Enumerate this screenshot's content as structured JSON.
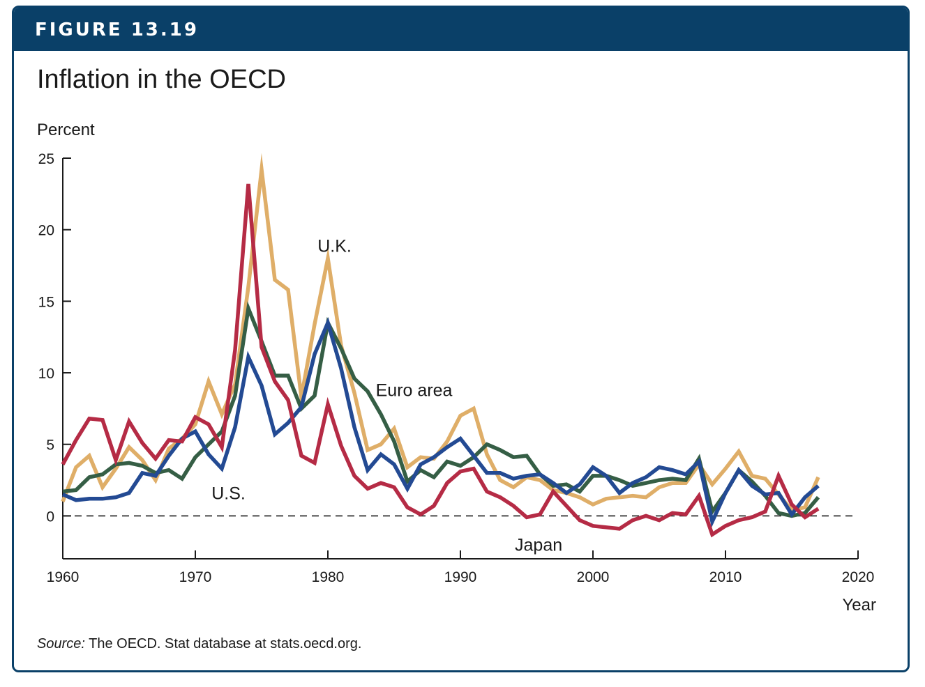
{
  "figure": {
    "label": "FIGURE 13.19",
    "title": "Inflation in the OECD",
    "source_prefix": "Source:",
    "source_text": " The OECD. Stat database at stats.oecd.org."
  },
  "colors": {
    "header": "#0a4068",
    "us": "#234a93",
    "uk": "#dfae68",
    "euro": "#355e45",
    "japan": "#b52b45"
  },
  "chart_data": {
    "type": "line",
    "ylabel": "Percent",
    "xlabel": "Year",
    "xlim": [
      1960,
      2020
    ],
    "ylim": [
      -3,
      25
    ],
    "xticks": [
      1960,
      1970,
      1980,
      1990,
      2000,
      2010,
      2020
    ],
    "yticks": [
      0,
      5,
      10,
      15,
      20,
      25
    ],
    "zero_line": "dashed",
    "grid": false,
    "series": [
      {
        "name": "U.K.",
        "color": "#dfae68",
        "label_pos": [
          1980.5,
          18.9
        ],
        "points": [
          [
            1960,
            1.0
          ],
          [
            1961,
            3.4
          ],
          [
            1962,
            4.2
          ],
          [
            1963,
            2.0
          ],
          [
            1964,
            3.3
          ],
          [
            1965,
            4.8
          ],
          [
            1966,
            3.9
          ],
          [
            1967,
            2.5
          ],
          [
            1968,
            4.7
          ],
          [
            1969,
            5.4
          ],
          [
            1970,
            6.4
          ],
          [
            1971,
            9.4
          ],
          [
            1972,
            7.1
          ],
          [
            1973,
            9.2
          ],
          [
            1974,
            16.0
          ],
          [
            1975,
            24.2
          ],
          [
            1976,
            16.5
          ],
          [
            1977,
            15.8
          ],
          [
            1978,
            8.3
          ],
          [
            1979,
            13.4
          ],
          [
            1980,
            18.0
          ],
          [
            1981,
            11.9
          ],
          [
            1982,
            8.6
          ],
          [
            1983,
            4.6
          ],
          [
            1984,
            5.0
          ],
          [
            1985,
            6.1
          ],
          [
            1986,
            3.4
          ],
          [
            1987,
            4.1
          ],
          [
            1988,
            4.0
          ],
          [
            1989,
            5.2
          ],
          [
            1990,
            7.0
          ],
          [
            1991,
            7.5
          ],
          [
            1992,
            4.3
          ],
          [
            1993,
            2.5
          ],
          [
            1994,
            2.0
          ],
          [
            1995,
            2.7
          ],
          [
            1996,
            2.5
          ],
          [
            1997,
            1.8
          ],
          [
            1998,
            1.6
          ],
          [
            1999,
            1.3
          ],
          [
            2000,
            0.8
          ],
          [
            2001,
            1.2
          ],
          [
            2002,
            1.3
          ],
          [
            2003,
            1.4
          ],
          [
            2004,
            1.3
          ],
          [
            2005,
            2.0
          ],
          [
            2006,
            2.3
          ],
          [
            2007,
            2.3
          ],
          [
            2008,
            3.6
          ],
          [
            2009,
            2.2
          ],
          [
            2010,
            3.3
          ],
          [
            2011,
            4.5
          ],
          [
            2012,
            2.8
          ],
          [
            2013,
            2.6
          ],
          [
            2014,
            1.5
          ],
          [
            2015,
            0.4
          ],
          [
            2016,
            0.6
          ],
          [
            2017,
            2.7
          ]
        ]
      },
      {
        "name": "Euro area",
        "color": "#355e45",
        "label_pos": [
          1986.5,
          8.8
        ],
        "points": [
          [
            1960,
            1.7
          ],
          [
            1961,
            1.8
          ],
          [
            1962,
            2.7
          ],
          [
            1963,
            2.9
          ],
          [
            1964,
            3.6
          ],
          [
            1965,
            3.7
          ],
          [
            1966,
            3.5
          ],
          [
            1967,
            3.0
          ],
          [
            1968,
            3.2
          ],
          [
            1969,
            2.6
          ],
          [
            1970,
            4.1
          ],
          [
            1971,
            5.0
          ],
          [
            1972,
            5.9
          ],
          [
            1973,
            8.4
          ],
          [
            1974,
            14.5
          ],
          [
            1975,
            12.2
          ],
          [
            1976,
            9.8
          ],
          [
            1977,
            9.8
          ],
          [
            1978,
            7.5
          ],
          [
            1979,
            8.4
          ],
          [
            1980,
            13.5
          ],
          [
            1981,
            11.7
          ],
          [
            1982,
            9.6
          ],
          [
            1983,
            8.7
          ],
          [
            1984,
            7.1
          ],
          [
            1985,
            5.2
          ],
          [
            1986,
            2.4
          ],
          [
            1987,
            3.2
          ],
          [
            1988,
            2.7
          ],
          [
            1989,
            3.8
          ],
          [
            1990,
            3.5
          ],
          [
            1991,
            4.1
          ],
          [
            1992,
            5.0
          ],
          [
            1993,
            4.6
          ],
          [
            1994,
            4.1
          ],
          [
            1995,
            4.2
          ],
          [
            1996,
            2.9
          ],
          [
            1997,
            2.1
          ],
          [
            1998,
            2.2
          ],
          [
            1999,
            1.7
          ],
          [
            2000,
            2.8
          ],
          [
            2001,
            2.8
          ],
          [
            2002,
            2.5
          ],
          [
            2003,
            2.1
          ],
          [
            2004,
            2.3
          ],
          [
            2005,
            2.5
          ],
          [
            2006,
            2.6
          ],
          [
            2007,
            2.5
          ],
          [
            2008,
            4.0
          ],
          [
            2009,
            0.3
          ],
          [
            2010,
            1.6
          ],
          [
            2011,
            3.2
          ],
          [
            2012,
            2.4
          ],
          [
            2013,
            1.4
          ],
          [
            2014,
            0.2
          ],
          [
            2015,
            0.0
          ],
          [
            2016,
            0.2
          ],
          [
            2017,
            1.3
          ]
        ]
      },
      {
        "name": "U.S.",
        "color": "#234a93",
        "label_pos": [
          1972.5,
          1.6
        ],
        "points": [
          [
            1960,
            1.5
          ],
          [
            1961,
            1.1
          ],
          [
            1962,
            1.2
          ],
          [
            1963,
            1.2
          ],
          [
            1964,
            1.3
          ],
          [
            1965,
            1.6
          ],
          [
            1966,
            3.0
          ],
          [
            1967,
            2.8
          ],
          [
            1968,
            4.2
          ],
          [
            1969,
            5.4
          ],
          [
            1970,
            5.9
          ],
          [
            1971,
            4.3
          ],
          [
            1972,
            3.3
          ],
          [
            1973,
            6.2
          ],
          [
            1974,
            11.1
          ],
          [
            1975,
            9.1
          ],
          [
            1976,
            5.7
          ],
          [
            1977,
            6.5
          ],
          [
            1978,
            7.6
          ],
          [
            1979,
            11.3
          ],
          [
            1980,
            13.5
          ],
          [
            1981,
            10.3
          ],
          [
            1982,
            6.2
          ],
          [
            1983,
            3.2
          ],
          [
            1984,
            4.3
          ],
          [
            1985,
            3.6
          ],
          [
            1986,
            1.9
          ],
          [
            1987,
            3.6
          ],
          [
            1988,
            4.1
          ],
          [
            1989,
            4.8
          ],
          [
            1990,
            5.4
          ],
          [
            1991,
            4.2
          ],
          [
            1992,
            3.0
          ],
          [
            1993,
            3.0
          ],
          [
            1994,
            2.6
          ],
          [
            1995,
            2.8
          ],
          [
            1996,
            2.9
          ],
          [
            1997,
            2.3
          ],
          [
            1998,
            1.6
          ],
          [
            1999,
            2.2
          ],
          [
            2000,
            3.4
          ],
          [
            2001,
            2.8
          ],
          [
            2002,
            1.6
          ],
          [
            2003,
            2.3
          ],
          [
            2004,
            2.7
          ],
          [
            2005,
            3.4
          ],
          [
            2006,
            3.2
          ],
          [
            2007,
            2.9
          ],
          [
            2008,
            3.8
          ],
          [
            2009,
            -0.4
          ],
          [
            2010,
            1.6
          ],
          [
            2011,
            3.2
          ],
          [
            2012,
            2.1
          ],
          [
            2013,
            1.5
          ],
          [
            2014,
            1.6
          ],
          [
            2015,
            0.1
          ],
          [
            2016,
            1.3
          ],
          [
            2017,
            2.1
          ]
        ]
      },
      {
        "name": "Japan",
        "color": "#b52b45",
        "label_pos": [
          1995.9,
          -2.0
        ],
        "points": [
          [
            1960,
            3.6
          ],
          [
            1961,
            5.3
          ],
          [
            1962,
            6.8
          ],
          [
            1963,
            6.7
          ],
          [
            1964,
            3.9
          ],
          [
            1965,
            6.6
          ],
          [
            1966,
            5.1
          ],
          [
            1967,
            4.0
          ],
          [
            1968,
            5.3
          ],
          [
            1969,
            5.2
          ],
          [
            1970,
            6.9
          ],
          [
            1971,
            6.4
          ],
          [
            1972,
            4.8
          ],
          [
            1973,
            11.6
          ],
          [
            1974,
            23.2
          ],
          [
            1975,
            11.8
          ],
          [
            1976,
            9.4
          ],
          [
            1977,
            8.1
          ],
          [
            1978,
            4.2
          ],
          [
            1979,
            3.7
          ],
          [
            1980,
            7.8
          ],
          [
            1981,
            4.9
          ],
          [
            1982,
            2.8
          ],
          [
            1983,
            1.9
          ],
          [
            1984,
            2.3
          ],
          [
            1985,
            2.0
          ],
          [
            1986,
            0.6
          ],
          [
            1987,
            0.1
          ],
          [
            1988,
            0.7
          ],
          [
            1989,
            2.3
          ],
          [
            1990,
            3.1
          ],
          [
            1991,
            3.3
          ],
          [
            1992,
            1.7
          ],
          [
            1993,
            1.3
          ],
          [
            1994,
            0.7
          ],
          [
            1995,
            -0.1
          ],
          [
            1996,
            0.1
          ],
          [
            1997,
            1.7
          ],
          [
            1998,
            0.7
          ],
          [
            1999,
            -0.3
          ],
          [
            2000,
            -0.7
          ],
          [
            2001,
            -0.8
          ],
          [
            2002,
            -0.9
          ],
          [
            2003,
            -0.3
          ],
          [
            2004,
            0.0
          ],
          [
            2005,
            -0.3
          ],
          [
            2006,
            0.2
          ],
          [
            2007,
            0.1
          ],
          [
            2008,
            1.4
          ],
          [
            2009,
            -1.3
          ],
          [
            2010,
            -0.7
          ],
          [
            2011,
            -0.3
          ],
          [
            2012,
            -0.1
          ],
          [
            2013,
            0.3
          ],
          [
            2014,
            2.8
          ],
          [
            2015,
            0.8
          ],
          [
            2016,
            -0.1
          ],
          [
            2017,
            0.5
          ]
        ]
      }
    ]
  }
}
